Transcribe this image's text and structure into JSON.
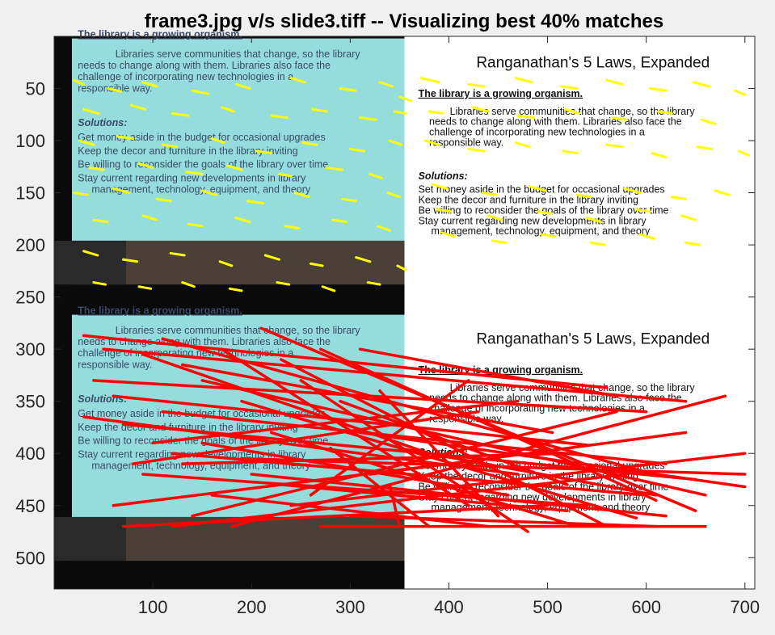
{
  "chart_data": {
    "type": "scatter",
    "title": "frame3.jpg v/s slide3.tiff -- Visualizing best 40% matches",
    "xlabel": "",
    "ylabel": "",
    "xlim": [
      0,
      710
    ],
    "ylim": [
      530,
      0
    ],
    "x_ticks": [
      100,
      200,
      300,
      400,
      500,
      600,
      700
    ],
    "y_ticks": [
      50,
      100,
      150,
      200,
      250,
      300,
      350,
      400,
      450,
      500
    ],
    "grid": false,
    "colors": {
      "keypoints": "#ffff00",
      "matches": "#ff0000",
      "axes": "#262626"
    },
    "image_tiles": {
      "frame_photo": {
        "source": "frame3.jpg",
        "x_range": [
          0,
          355
        ],
        "row_ranges": [
          [
            0,
            265
          ],
          [
            265,
            530
          ]
        ],
        "lines": {
          "heading": "The library is a growing organism.",
          "para1": "Libraries serve communities that change, so the library",
          "para2": "needs to change along with them. Libraries also face the",
          "para3": "challenge of incorporating new technologies in a",
          "para4": "responsible way.",
          "solutions": "Solutions:",
          "s1": "Get money aside in the budget for occasional upgrades",
          "s2": "Keep the decor and furniture in the library inviting",
          "s3": "Be willing to reconsider the goals of the library over time",
          "s4": "Stay current regarding new developments in library",
          "s5": "management, technology, equipment, and theory"
        }
      },
      "slide": {
        "source": "slide3.tiff",
        "x_range": [
          355,
          710
        ],
        "row_ranges": [
          [
            0,
            265
          ],
          [
            265,
            530
          ]
        ],
        "title": "Ranganathan's 5 Laws, Expanded",
        "lines": {
          "heading": "The library is a growing organism.",
          "para1": "Libraries serve communities that change, so the library",
          "para2": "needs to change along with them. Libraries also face the",
          "para3": "challenge of incorporating new technologies in a",
          "para4": "responsible way.",
          "solutions": "Solutions:",
          "s1": "Set money aside in the budget for occasional upgrades",
          "s2": "Keep the decor and furniture in the library inviting",
          "s3": "Be willing to reconsider the goals of the library over time",
          "s4": "Stay current regarding new developments in library",
          "s5": "management, technology, equipment, and theory"
        }
      }
    },
    "keypoints": [
      [
        20,
        42,
        30,
        46
      ],
      [
        55,
        50,
        68,
        53
      ],
      [
        90,
        44,
        104,
        48
      ],
      [
        140,
        52,
        156,
        55
      ],
      [
        185,
        46,
        198,
        50
      ],
      [
        240,
        40,
        254,
        44
      ],
      [
        290,
        50,
        305,
        52
      ],
      [
        330,
        44,
        343,
        48
      ],
      [
        350,
        58,
        362,
        62
      ],
      [
        30,
        70,
        45,
        74
      ],
      [
        78,
        66,
        92,
        70
      ],
      [
        120,
        74,
        136,
        76
      ],
      [
        170,
        68,
        182,
        72
      ],
      [
        220,
        76,
        236,
        78
      ],
      [
        262,
        70,
        276,
        72
      ],
      [
        310,
        78,
        326,
        80
      ],
      [
        345,
        72,
        356,
        74
      ],
      [
        26,
        100,
        40,
        104
      ],
      [
        64,
        96,
        80,
        98
      ],
      [
        110,
        104,
        124,
        106
      ],
      [
        160,
        98,
        172,
        102
      ],
      [
        205,
        110,
        220,
        112
      ],
      [
        252,
        102,
        266,
        104
      ],
      [
        300,
        108,
        314,
        110
      ],
      [
        340,
        100,
        352,
        104
      ],
      [
        36,
        126,
        50,
        128
      ],
      [
        86,
        122,
        100,
        126
      ],
      [
        134,
        130,
        150,
        132
      ],
      [
        176,
        124,
        190,
        128
      ],
      [
        228,
        132,
        240,
        134
      ],
      [
        276,
        126,
        292,
        128
      ],
      [
        320,
        132,
        332,
        136
      ],
      [
        20,
        150,
        34,
        152
      ],
      [
        60,
        146,
        76,
        150
      ],
      [
        104,
        156,
        118,
        158
      ],
      [
        150,
        148,
        164,
        152
      ],
      [
        196,
        158,
        212,
        160
      ],
      [
        244,
        150,
        258,
        154
      ],
      [
        292,
        156,
        306,
        158
      ],
      [
        338,
        150,
        350,
        154
      ],
      [
        40,
        176,
        54,
        178
      ],
      [
        90,
        172,
        104,
        176
      ],
      [
        136,
        180,
        150,
        182
      ],
      [
        184,
        174,
        198,
        178
      ],
      [
        234,
        182,
        248,
        184
      ],
      [
        282,
        176,
        296,
        178
      ],
      [
        328,
        182,
        340,
        186
      ],
      [
        30,
        206,
        44,
        210
      ],
      [
        70,
        214,
        84,
        216
      ],
      [
        118,
        208,
        132,
        210
      ],
      [
        168,
        216,
        180,
        220
      ],
      [
        214,
        210,
        228,
        214
      ],
      [
        260,
        218,
        272,
        220
      ],
      [
        306,
        212,
        320,
        216
      ],
      [
        348,
        220,
        356,
        224
      ],
      [
        40,
        236,
        52,
        238
      ],
      [
        86,
        240,
        98,
        242
      ],
      [
        130,
        236,
        142,
        240
      ],
      [
        178,
        242,
        190,
        244
      ],
      [
        226,
        236,
        238,
        238
      ],
      [
        272,
        240,
        284,
        244
      ],
      [
        318,
        236,
        330,
        238
      ],
      [
        372,
        40,
        390,
        44
      ],
      [
        420,
        46,
        436,
        48
      ],
      [
        468,
        40,
        484,
        44
      ],
      [
        514,
        48,
        530,
        50
      ],
      [
        560,
        42,
        576,
        46
      ],
      [
        604,
        50,
        620,
        52
      ],
      [
        648,
        44,
        664,
        48
      ],
      [
        690,
        52,
        700,
        56
      ],
      [
        380,
        72,
        394,
        74
      ],
      [
        424,
        68,
        440,
        72
      ],
      [
        470,
        76,
        486,
        78
      ],
      [
        518,
        70,
        532,
        74
      ],
      [
        566,
        78,
        580,
        80
      ],
      [
        612,
        72,
        626,
        74
      ],
      [
        656,
        80,
        670,
        84
      ],
      [
        376,
        100,
        390,
        104
      ],
      [
        420,
        108,
        436,
        110
      ],
      [
        468,
        102,
        482,
        106
      ],
      [
        516,
        110,
        530,
        112
      ],
      [
        560,
        104,
        576,
        106
      ],
      [
        606,
        112,
        620,
        116
      ],
      [
        652,
        106,
        666,
        108
      ],
      [
        694,
        110,
        704,
        114
      ],
      [
        384,
        142,
        398,
        146
      ],
      [
        434,
        150,
        448,
        152
      ],
      [
        482,
        144,
        498,
        148
      ],
      [
        530,
        152,
        544,
        154
      ],
      [
        578,
        146,
        594,
        150
      ],
      [
        626,
        154,
        640,
        156
      ],
      [
        670,
        148,
        684,
        152
      ],
      [
        388,
        166,
        402,
        168
      ],
      [
        440,
        172,
        454,
        176
      ],
      [
        490,
        168,
        504,
        170
      ],
      [
        540,
        174,
        554,
        178
      ],
      [
        590,
        166,
        604,
        168
      ],
      [
        636,
        172,
        650,
        176
      ],
      [
        392,
        188,
        406,
        192
      ],
      [
        444,
        196,
        458,
        198
      ],
      [
        494,
        190,
        508,
        192
      ],
      [
        544,
        198,
        558,
        200
      ],
      [
        594,
        190,
        608,
        194
      ],
      [
        640,
        198,
        654,
        200
      ]
    ],
    "matches": [
      [
        30,
        287,
        560,
        337
      ],
      [
        50,
        300,
        640,
        350
      ],
      [
        40,
        330,
        600,
        360
      ],
      [
        60,
        345,
        540,
        392
      ],
      [
        30,
        365,
        470,
        420
      ],
      [
        70,
        372,
        650,
        425
      ],
      [
        90,
        305,
        380,
        400
      ],
      [
        110,
        290,
        600,
        418
      ],
      [
        130,
        315,
        505,
        380
      ],
      [
        150,
        330,
        660,
        440
      ],
      [
        170,
        300,
        420,
        450
      ],
      [
        190,
        350,
        590,
        462
      ],
      [
        210,
        280,
        650,
        455
      ],
      [
        230,
        310,
        560,
        470
      ],
      [
        250,
        330,
        480,
        475
      ],
      [
        270,
        300,
        610,
        445
      ],
      [
        290,
        350,
        520,
        430
      ],
      [
        310,
        380,
        700,
        432
      ],
      [
        330,
        340,
        450,
        460
      ],
      [
        120,
        400,
        600,
        440
      ],
      [
        90,
        420,
        540,
        450
      ],
      [
        60,
        450,
        400,
        410
      ],
      [
        130,
        410,
        520,
        400
      ],
      [
        160,
        440,
        440,
        470
      ],
      [
        200,
        420,
        620,
        460
      ],
      [
        240,
        450,
        700,
        400
      ],
      [
        280,
        395,
        380,
        470
      ],
      [
        320,
        420,
        640,
        380
      ],
      [
        100,
        390,
        470,
        350
      ],
      [
        140,
        460,
        570,
        360
      ],
      [
        180,
        470,
        680,
        345
      ],
      [
        220,
        380,
        530,
        470
      ],
      [
        260,
        440,
        420,
        330
      ],
      [
        300,
        460,
        610,
        470
      ],
      [
        340,
        430,
        350,
        470
      ],
      [
        70,
        470,
        500,
        450
      ],
      [
        110,
        360,
        620,
        410
      ],
      [
        150,
        390,
        460,
        440
      ],
      [
        190,
        405,
        700,
        420
      ],
      [
        230,
        430,
        520,
        455
      ],
      [
        270,
        470,
        660,
        470
      ],
      [
        310,
        300,
        570,
        345
      ],
      [
        350,
        395,
        610,
        440
      ],
      [
        80,
        410,
        430,
        360
      ],
      [
        120,
        470,
        580,
        420
      ]
    ]
  }
}
